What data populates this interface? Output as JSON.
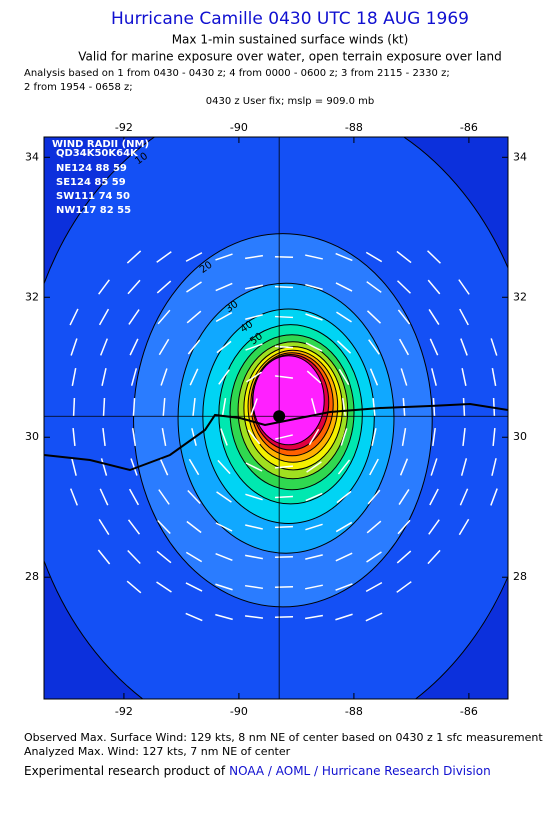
{
  "header": {
    "title": "Hurricane Camille 0430 UTC 18 AUG 1969",
    "subtitle": "Max 1-min sustained surface winds (kt)",
    "valid_line": "Valid for marine exposure over water, open terrain exposure over land",
    "analysis_line_1": "Analysis based on  1 from 0430 - 0430 z;  4 from 0000 - 0600 z;  3 from 2115 - 2330 z;",
    "analysis_line_2": "2 from 1954 - 0658 z;",
    "fix_line": "0430 z User fix; mslp = 909.0 mb"
  },
  "chart_data": {
    "type": "contour",
    "xlim": [
      -93.39,
      -85.32
    ],
    "ylim": [
      26.26,
      34.29
    ],
    "xticks": [
      -92,
      -90,
      -88,
      -86
    ],
    "yticks": [
      28,
      30,
      32,
      34
    ],
    "center": [
      -89.3,
      30.3
    ],
    "levels": [
      10,
      20,
      30,
      40,
      50,
      60,
      70,
      80,
      90,
      100,
      110,
      120
    ],
    "colors": [
      "#1450f5",
      "#2a7cff",
      "#10a8ff",
      "#00d4f4",
      "#00e8b0",
      "#30d850",
      "#a0e020",
      "#f4f000",
      "#ffb000",
      "#ff6000",
      "#e00040",
      "#ff20ff"
    ],
    "background": "#0c30dc",
    "wind_radii": {
      "title": "WIND RADII (NM)",
      "header": "QD34K50K64K",
      "rows": [
        "NE124 88 59",
        "SE124 85 59",
        "SW111 74 50",
        "NW117 82 55"
      ]
    }
  },
  "footer": {
    "observed": "Observed Max. Surface Wind: 129 kts, 8 nm NE of center based on 0430 z 1 sfc measurement",
    "analyzed": "Analyzed Max. Wind: 127 kts, 7 nm NE of center",
    "product": "Experimental research product of",
    "link": "NOAA / AOML / Hurricane Research Division"
  }
}
